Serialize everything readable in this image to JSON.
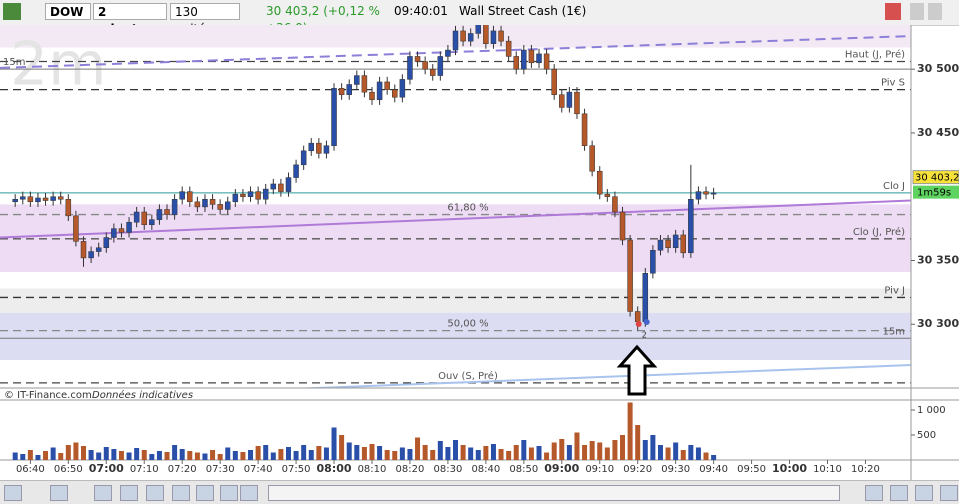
{
  "toolbar": {
    "symbol": "DOW",
    "period": "2 minutes",
    "units": "130 unités",
    "quote": "30 403,2 (+0,12 % +36,0)",
    "time": "09:40:01",
    "instrument": "Wall Street Cash (1€)"
  },
  "footer": {
    "source": "© IT-Finance.com",
    "note": "Données indicatives"
  },
  "chart_data": {
    "type": "candlestick",
    "watermark": "2m",
    "x": [
      "06:36",
      "06:38",
      "06:40",
      "06:42",
      "06:44",
      "06:46",
      "06:48",
      "06:50",
      "06:52",
      "06:54",
      "06:56",
      "06:58",
      "07:00",
      "07:02",
      "07:04",
      "07:06",
      "07:08",
      "07:10",
      "07:12",
      "07:14",
      "07:16",
      "07:18",
      "07:20",
      "07:22",
      "07:24",
      "07:26",
      "07:28",
      "07:30",
      "07:32",
      "07:34",
      "07:36",
      "07:38",
      "07:40",
      "07:42",
      "07:44",
      "07:46",
      "07:48",
      "07:50",
      "07:52",
      "07:54",
      "07:56",
      "07:58",
      "08:00",
      "08:02",
      "08:04",
      "08:06",
      "08:08",
      "08:10",
      "08:12",
      "08:14",
      "08:16",
      "08:18",
      "08:20",
      "08:22",
      "08:24",
      "08:26",
      "08:28",
      "08:30",
      "08:32",
      "08:34",
      "08:36",
      "08:38",
      "08:40",
      "08:42",
      "08:44",
      "08:46",
      "08:48",
      "08:50",
      "08:52",
      "08:54",
      "08:56",
      "08:58",
      "09:00",
      "09:02",
      "09:04",
      "09:06",
      "09:08",
      "09:10",
      "09:12",
      "09:14",
      "09:16",
      "09:18",
      "09:20",
      "09:22",
      "09:24",
      "09:26",
      "09:28",
      "09:30",
      "09:32",
      "09:34",
      "09:36",
      "09:38",
      "09:40"
    ],
    "open": [
      30396,
      30398,
      30400,
      30396,
      30399,
      30397,
      30400,
      30398,
      30385,
      30365,
      30352,
      30357,
      30360,
      30368,
      30375,
      30372,
      30380,
      30388,
      30378,
      30382,
      30390,
      30386,
      30398,
      30404,
      30396,
      30392,
      30398,
      30394,
      30390,
      30396,
      30402,
      30400,
      30404,
      30398,
      30406,
      30410,
      30404,
      30415,
      30425,
      30436,
      30442,
      30434,
      30440,
      30485,
      30480,
      30488,
      30495,
      30482,
      30476,
      30490,
      30484,
      30478,
      30492,
      30510,
      30506,
      30500,
      30495,
      30510,
      30515,
      30530,
      30522,
      30528,
      30535,
      30520,
      30530,
      30522,
      30510,
      30500,
      30515,
      30505,
      30512,
      30500,
      30480,
      30470,
      30482,
      30465,
      30440,
      30420,
      30402,
      30400,
      30388,
      30366,
      30310,
      30302,
      30340,
      30358,
      30366,
      30360,
      30370,
      30356,
      30398,
      30404,
      30402
    ],
    "high": [
      30402,
      30404,
      30404,
      30403,
      30403,
      30404,
      30404,
      30402,
      30389,
      30369,
      30361,
      30364,
      30372,
      30379,
      30379,
      30384,
      30392,
      30392,
      30386,
      30394,
      30394,
      30402,
      30408,
      30408,
      30400,
      30402,
      30402,
      30398,
      30400,
      30406,
      30406,
      30408,
      30408,
      30410,
      30414,
      30414,
      30419,
      30429,
      30440,
      30446,
      30446,
      30444,
      30489,
      30489,
      30492,
      30499,
      30499,
      30486,
      30494,
      30494,
      30488,
      30496,
      30514,
      30514,
      30510,
      30504,
      30514,
      30519,
      30534,
      30534,
      30532,
      30537,
      30537,
      30534,
      30534,
      30526,
      30514,
      30519,
      30519,
      30516,
      30516,
      30504,
      30484,
      30486,
      30486,
      30469,
      30444,
      30424,
      30406,
      30404,
      30392,
      30370,
      30314,
      30344,
      30362,
      30370,
      30370,
      30374,
      30374,
      30425,
      30408,
      30408,
      30407
    ],
    "low": [
      30392,
      30394,
      30392,
      30392,
      30393,
      30393,
      30394,
      30381,
      30361,
      30345,
      30348,
      30353,
      30356,
      30364,
      30368,
      30368,
      30376,
      30374,
      30374,
      30378,
      30382,
      30382,
      30394,
      30392,
      30388,
      30388,
      30390,
      30386,
      30386,
      30392,
      30396,
      30396,
      30394,
      30394,
      30402,
      30400,
      30400,
      30411,
      30421,
      30432,
      30430,
      30430,
      30436,
      30476,
      30476,
      30484,
      30478,
      30472,
      30472,
      30480,
      30474,
      30474,
      30488,
      30502,
      30496,
      30491,
      30491,
      30506,
      30511,
      30518,
      30518,
      30524,
      30516,
      30516,
      30518,
      30506,
      30496,
      30496,
      30501,
      30501,
      30496,
      30476,
      30466,
      30466,
      30461,
      30436,
      30416,
      30398,
      30396,
      30384,
      30362,
      30306,
      30295,
      30298,
      30336,
      30354,
      30356,
      30356,
      30352,
      30352,
      30394,
      30398,
      30398
    ],
    "close": [
      30398,
      30400,
      30396,
      30399,
      30397,
      30400,
      30398,
      30385,
      30365,
      30352,
      30357,
      30360,
      30368,
      30375,
      30372,
      30380,
      30388,
      30378,
      30382,
      30390,
      30386,
      30398,
      30404,
      30396,
      30392,
      30398,
      30394,
      30390,
      30396,
      30402,
      30400,
      30404,
      30398,
      30406,
      30410,
      30404,
      30415,
      30425,
      30436,
      30442,
      30434,
      30440,
      30485,
      30480,
      30488,
      30495,
      30482,
      30476,
      30490,
      30484,
      30478,
      30492,
      30510,
      30506,
      30500,
      30495,
      30510,
      30515,
      30530,
      30522,
      30528,
      30535,
      30520,
      30530,
      30522,
      30510,
      30500,
      30515,
      30505,
      30512,
      30500,
      30480,
      30470,
      30482,
      30465,
      30440,
      30420,
      30402,
      30400,
      30388,
      30366,
      30310,
      30302,
      30340,
      30358,
      30366,
      30360,
      30370,
      30356,
      30398,
      30404,
      30402,
      30403
    ],
    "volume": [
      150,
      120,
      200,
      100,
      180,
      250,
      140,
      300,
      350,
      280,
      200,
      150,
      260,
      220,
      180,
      150,
      240,
      200,
      120,
      180,
      160,
      300,
      220,
      180,
      150,
      130,
      200,
      120,
      250,
      180,
      160,
      200,
      280,
      300,
      150,
      220,
      260,
      180,
      300,
      200,
      280,
      250,
      650,
      500,
      350,
      300,
      260,
      320,
      280,
      200,
      180,
      250,
      220,
      450,
      300,
      200,
      380,
      260,
      400,
      300,
      250,
      200,
      280,
      320,
      220,
      180,
      300,
      400,
      250,
      280,
      150,
      350,
      420,
      300,
      550,
      300,
      380,
      350,
      250,
      400,
      500,
      1150,
      700,
      400,
      500,
      300,
      250,
      350,
      200,
      300,
      250,
      150,
      100
    ],
    "up_color": "#2a4fa8",
    "down_color": "#b5582a",
    "xlim": [
      "06:32",
      "10:32"
    ],
    "xticks": [
      "06:40",
      "06:50",
      "07:00",
      "07:10",
      "07:20",
      "07:30",
      "07:40",
      "07:50",
      "08:00",
      "08:10",
      "08:20",
      "08:30",
      "08:40",
      "08:50",
      "09:00",
      "09:10",
      "09:20",
      "09:30",
      "09:40",
      "09:50",
      "10:00",
      "10:10",
      "10:20"
    ],
    "ylim": [
      30250,
      30537
    ],
    "yticks": [
      {
        "value": 30500,
        "label": "30 500"
      },
      {
        "value": 30450,
        "label": "30 450"
      },
      {
        "value": 30350,
        "label": "30 350"
      },
      {
        "value": 30300,
        "label": "30 300"
      }
    ],
    "vlim": [
      0,
      1200
    ],
    "vticks": [
      {
        "value": 1000,
        "label": "1 000"
      },
      500
    ],
    "zones": [
      {
        "from": 30517,
        "to": 30537,
        "color": "#f3e9f5"
      },
      {
        "from": 30341,
        "to": 30394,
        "color": "#eddcf4"
      },
      {
        "from": 30309,
        "to": 30328,
        "color": "#ededed"
      },
      {
        "from": 30272,
        "to": 30309,
        "color": "#dcdcf2"
      }
    ],
    "levels": [
      {
        "label": "Haut (J, Pré)",
        "value": 30506,
        "dash": true,
        "color": "#444",
        "kind": "right"
      },
      {
        "label": "15m",
        "value": 30500,
        "dash": false,
        "color": "#777",
        "kind": "left"
      },
      {
        "label": "Piv S",
        "value": 30484,
        "dash": true,
        "color": "#333",
        "kind": "right"
      },
      {
        "label": "Clo J",
        "value": 30403,
        "dash": false,
        "color": "#2a9a9a",
        "kind": "right"
      },
      {
        "label": "61,80 %",
        "value": 30386,
        "dash": true,
        "color": "#888",
        "kind": "center"
      },
      {
        "label": "Clo (J, Pré)",
        "value": 30367,
        "dash": true,
        "color": "#555",
        "kind": "right"
      },
      {
        "label": "Piv J",
        "value": 30321,
        "dash": true,
        "color": "#333",
        "kind": "right"
      },
      {
        "label": "50,00 %",
        "value": 30295,
        "dash": true,
        "color": "#888",
        "kind": "center"
      },
      {
        "label": "15m",
        "value": 30289,
        "dash": false,
        "color": "#777",
        "kind": "right"
      },
      {
        "label": "Ouv (S, Pré)",
        "value": 30254,
        "dash": true,
        "color": "#444",
        "kind": "center"
      }
    ],
    "trendlines": [
      {
        "x": [
          "06:32",
          "10:32"
        ],
        "values": [
          30501,
          30526
        ],
        "color": "#8c7fd8",
        "dash": true
      },
      {
        "x": [
          "06:32",
          "10:32"
        ],
        "values": [
          30368,
          30397
        ],
        "color": "#b07ad8",
        "dash": false
      },
      {
        "x": [
          "07:12",
          "10:32"
        ],
        "values": [
          30245,
          30268
        ],
        "color": "#a8c4ee",
        "dash": false
      }
    ],
    "last": {
      "value": 30403.2,
      "label": "30 403,2",
      "timer": "1m59s"
    },
    "marker": {
      "x": "09:20",
      "label": "2"
    }
  }
}
